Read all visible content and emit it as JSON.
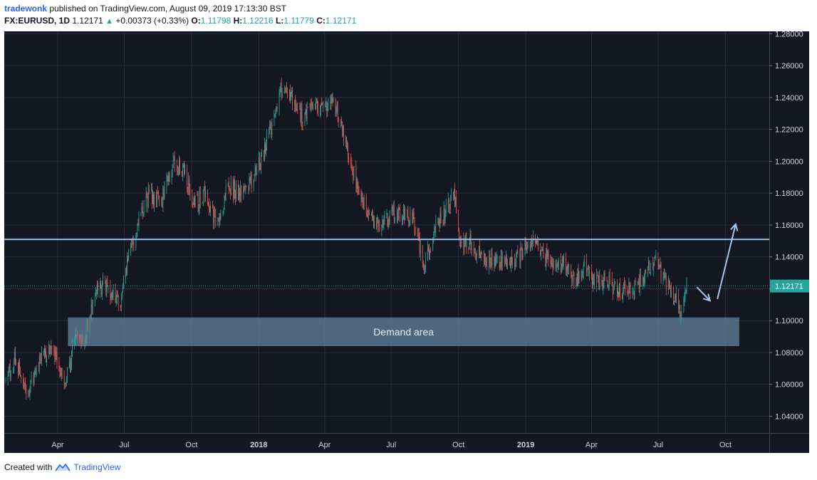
{
  "header": {
    "author": "tradewonk",
    "published_text": "published on TradingView.com, August 09, 2019 17:13:30 BST",
    "symbol": "FX:EURUSD, 1D",
    "last": "1.12171",
    "change": "+0.00373 (+0.33%)",
    "open_label": "O:",
    "open": "1.11798",
    "high_label": "H:",
    "high": "1.12216",
    "low_label": "L:",
    "low": "1.11779",
    "close_label": "C:",
    "close": "1.12171"
  },
  "footer": {
    "created_with": "Created with",
    "brand": "TradingView"
  },
  "colors": {
    "background": "#131722",
    "grid": "#2a2e39",
    "up": "#26a69a",
    "down": "#ef5350",
    "resistance_line": "#9bb8e0",
    "demand_fill": "#5f7d9a",
    "price_line": "#26a69a",
    "arrow": "#a9c4ea"
  },
  "chart_data": {
    "type": "candlestick",
    "symbol": "FX:EURUSD",
    "interval": "1D",
    "x_tick_labels": [
      "Apr",
      "Jul",
      "Oct",
      "2018",
      "Apr",
      "Jul",
      "Oct",
      "2019",
      "Apr",
      "Jul",
      "Oct"
    ],
    "x_tick_dates": [
      "2017-04-01",
      "2017-07-01",
      "2017-10-01",
      "2018-01-01",
      "2018-04-01",
      "2018-07-01",
      "2018-10-01",
      "2019-01-01",
      "2019-04-01",
      "2019-07-01",
      "2019-10-01"
    ],
    "xlim": [
      "2017-01-18",
      "2019-11-30"
    ],
    "y_tick_labels": [
      "1.04000",
      "1.06000",
      "1.08000",
      "1.10000",
      "1.12000",
      "1.14000",
      "1.16000",
      "1.18000",
      "1.20000",
      "1.22000",
      "1.24000",
      "1.26000",
      "1.28000"
    ],
    "ylim": [
      1.0295,
      1.2815
    ],
    "price_path": [
      [
        "2017-01-20",
        1.062
      ],
      [
        "2017-02-01",
        1.076
      ],
      [
        "2017-02-20",
        1.055
      ],
      [
        "2017-03-10",
        1.078
      ],
      [
        "2017-03-25",
        1.082
      ],
      [
        "2017-04-10",
        1.061
      ],
      [
        "2017-04-25",
        1.088
      ],
      [
        "2017-05-10",
        1.092
      ],
      [
        "2017-05-25",
        1.121
      ],
      [
        "2017-06-10",
        1.12
      ],
      [
        "2017-06-26",
        1.113
      ],
      [
        "2017-07-10",
        1.145
      ],
      [
        "2017-07-25",
        1.168
      ],
      [
        "2017-08-05",
        1.18
      ],
      [
        "2017-08-20",
        1.173
      ],
      [
        "2017-09-05",
        1.199
      ],
      [
        "2017-09-20",
        1.195
      ],
      [
        "2017-10-05",
        1.173
      ],
      [
        "2017-10-20",
        1.18
      ],
      [
        "2017-11-05",
        1.16
      ],
      [
        "2017-11-20",
        1.185
      ],
      [
        "2017-12-05",
        1.18
      ],
      [
        "2017-12-20",
        1.186
      ],
      [
        "2018-01-05",
        1.202
      ],
      [
        "2018-01-20",
        1.225
      ],
      [
        "2018-02-01",
        1.246
      ],
      [
        "2018-02-15",
        1.24
      ],
      [
        "2018-03-01",
        1.228
      ],
      [
        "2018-03-15",
        1.236
      ],
      [
        "2018-04-01",
        1.231
      ],
      [
        "2018-04-15",
        1.236
      ],
      [
        "2018-05-01",
        1.209
      ],
      [
        "2018-05-15",
        1.185
      ],
      [
        "2018-06-01",
        1.166
      ],
      [
        "2018-06-15",
        1.158
      ],
      [
        "2018-07-01",
        1.167
      ],
      [
        "2018-07-15",
        1.168
      ],
      [
        "2018-08-01",
        1.162
      ],
      [
        "2018-08-15",
        1.135
      ],
      [
        "2018-09-01",
        1.16
      ],
      [
        "2018-09-15",
        1.17
      ],
      [
        "2018-09-25",
        1.178
      ],
      [
        "2018-10-05",
        1.148
      ],
      [
        "2018-10-20",
        1.149
      ],
      [
        "2018-11-05",
        1.136
      ],
      [
        "2018-11-20",
        1.138
      ],
      [
        "2018-12-05",
        1.136
      ],
      [
        "2018-12-20",
        1.139
      ],
      [
        "2019-01-10",
        1.152
      ],
      [
        "2019-01-25",
        1.141
      ],
      [
        "2019-02-10",
        1.133
      ],
      [
        "2019-02-25",
        1.136
      ],
      [
        "2019-03-10",
        1.124
      ],
      [
        "2019-03-22",
        1.136
      ],
      [
        "2019-04-05",
        1.124
      ],
      [
        "2019-04-20",
        1.125
      ],
      [
        "2019-05-05",
        1.119
      ],
      [
        "2019-05-20",
        1.117
      ],
      [
        "2019-06-05",
        1.124
      ],
      [
        "2019-06-25",
        1.138
      ],
      [
        "2019-07-10",
        1.125
      ],
      [
        "2019-07-25",
        1.113
      ],
      [
        "2019-08-01",
        1.106
      ],
      [
        "2019-08-09",
        1.1217
      ]
    ],
    "horizontal_line": {
      "price": 1.151
    },
    "current_price_line": {
      "price": 1.12171,
      "label": "1.12171"
    },
    "demand_zone": {
      "start": "2017-04-15",
      "end": "2019-10-20",
      "top": 1.102,
      "bottom": 1.084,
      "label": "Demand area"
    },
    "arrows": [
      {
        "from": [
          "2019-08-23",
          1.121
        ],
        "to": [
          "2019-09-10",
          1.1125
        ]
      },
      {
        "from": [
          "2019-09-20",
          1.1135
        ],
        "to": [
          "2019-10-15",
          1.1605
        ]
      }
    ]
  }
}
